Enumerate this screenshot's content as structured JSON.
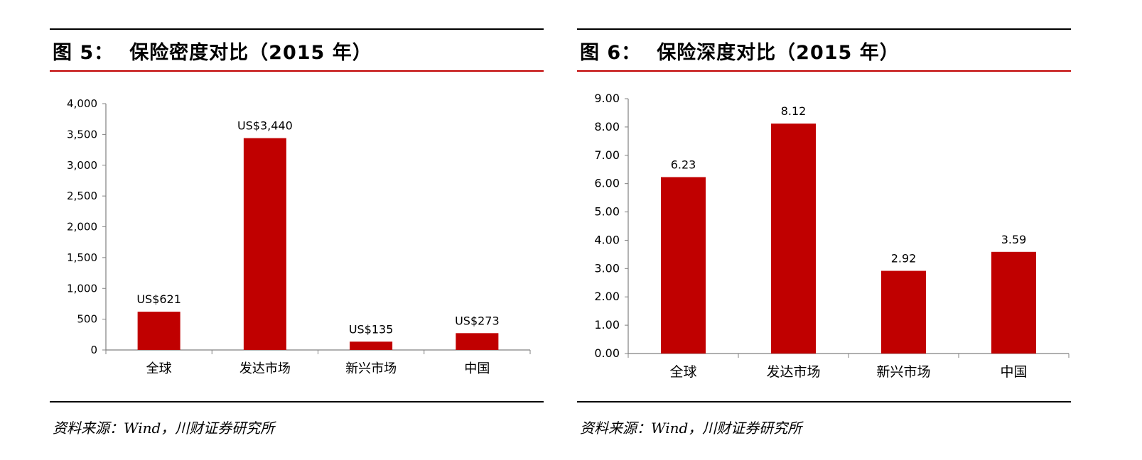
{
  "figures": [
    {
      "title_num": "图  5：",
      "title_text": "保险密度对比（2015 年）",
      "source": "资料来源：Wind，川财证券研究所",
      "chart_data": {
        "type": "bar",
        "categories": [
          "全球",
          "发达市场",
          "新兴市场",
          "中国"
        ],
        "values": [
          621,
          3440,
          135,
          273
        ],
        "data_labels": [
          "US$621",
          "US$3,440",
          "US$135",
          "US$273"
        ],
        "y_ticks": [
          "0",
          "500",
          "1,000",
          "1,500",
          "2,000",
          "2,500",
          "3,000",
          "3,500",
          "4,000"
        ],
        "ylim": [
          0,
          4000
        ],
        "y_step": 500,
        "grid": false,
        "legend": "none",
        "bar_color": "#c00000"
      }
    },
    {
      "title_num": "图  6：",
      "title_text": "保险深度对比（2015 年）",
      "source": "资料来源：Wind，川财证券研究所",
      "chart_data": {
        "type": "bar",
        "categories": [
          "全球",
          "发达市场",
          "新兴市场",
          "中国"
        ],
        "values": [
          6.23,
          8.12,
          2.92,
          3.59
        ],
        "data_labels": [
          "6.23",
          "8.12",
          "2.92",
          "3.59"
        ],
        "y_ticks": [
          "0.00",
          "1.00",
          "2.00",
          "3.00",
          "4.00",
          "5.00",
          "6.00",
          "7.00",
          "8.00",
          "9.00"
        ],
        "ylim": [
          0,
          9
        ],
        "y_step": 1,
        "grid": false,
        "legend": "none",
        "bar_color": "#c00000"
      }
    }
  ]
}
